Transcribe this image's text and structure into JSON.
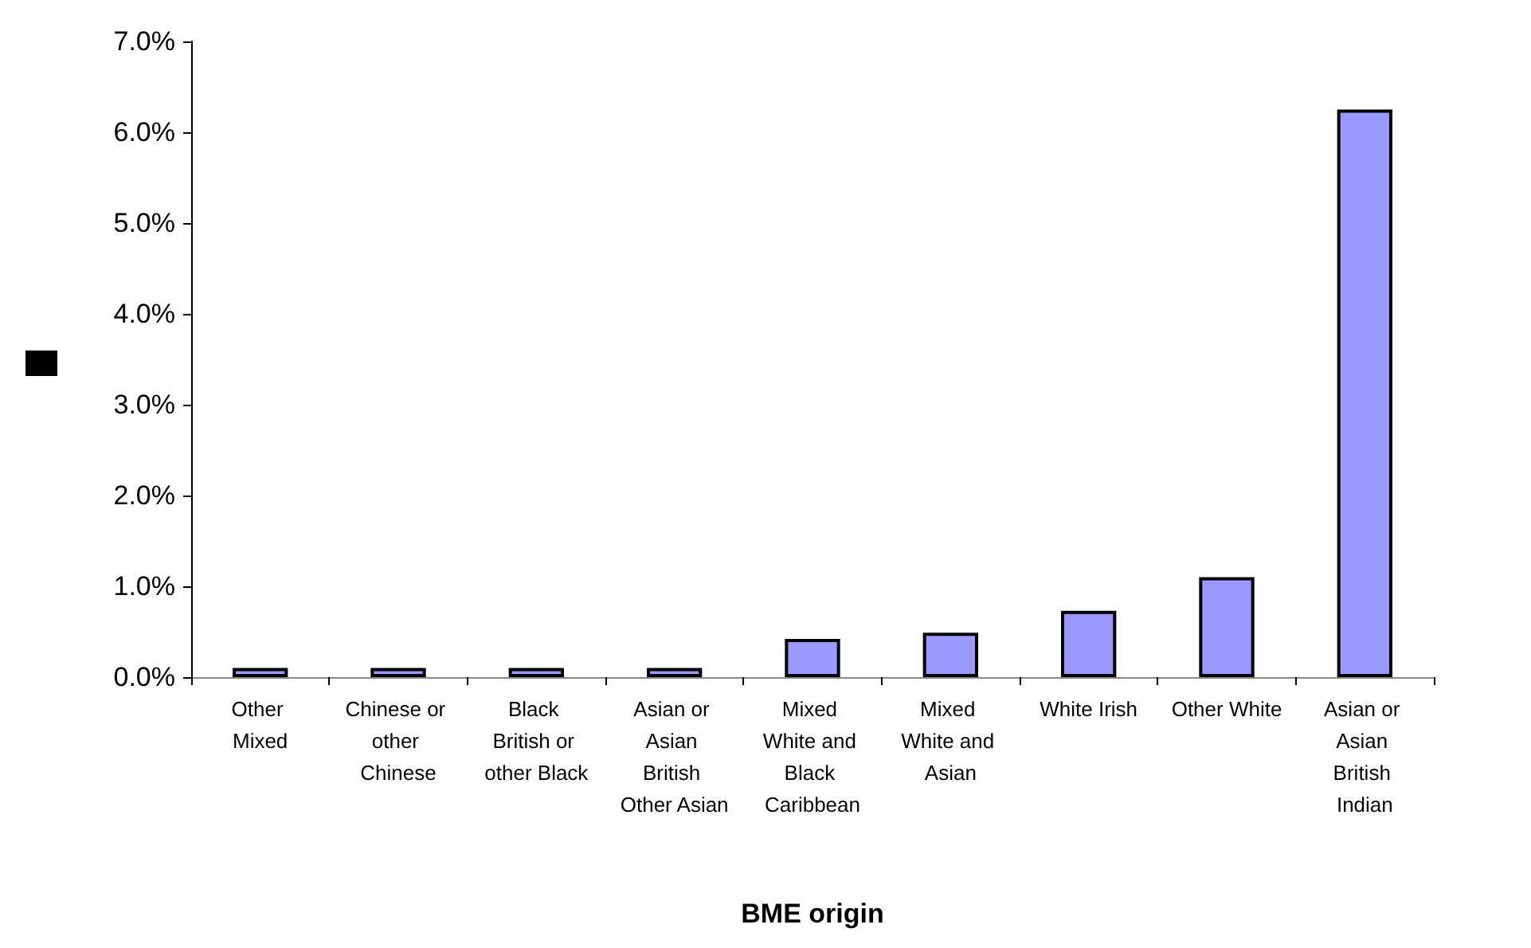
{
  "chart_data": {
    "type": "bar",
    "xlabel": "BME origin",
    "categories": [
      "Other Mixed",
      "Chinese or other Chinese",
      "Black British or other Black",
      "Asian or Asian British Other Asian",
      "Mixed White and Black Caribbean",
      "Mixed White and Asian",
      "White Irish",
      "Other White",
      "Asian or Asian British Indian"
    ],
    "values": [
      0.1,
      0.1,
      0.1,
      0.1,
      0.42,
      0.49,
      0.73,
      1.1,
      6.25
    ],
    "color": "#9999ff",
    "ylim": [
      0,
      7
    ],
    "yticks": [
      {
        "value": 0,
        "label": "0.0%"
      },
      {
        "value": 1,
        "label": "1.0%"
      },
      {
        "value": 2,
        "label": "2.0%"
      },
      {
        "value": 3,
        "label": "3.0%"
      },
      {
        "value": 4,
        "label": "4.0%"
      },
      {
        "value": 5,
        "label": "5.0%"
      },
      {
        "value": 6,
        "label": "6.0%"
      },
      {
        "value": 7,
        "label": "7.0%"
      }
    ],
    "grid": false
  }
}
